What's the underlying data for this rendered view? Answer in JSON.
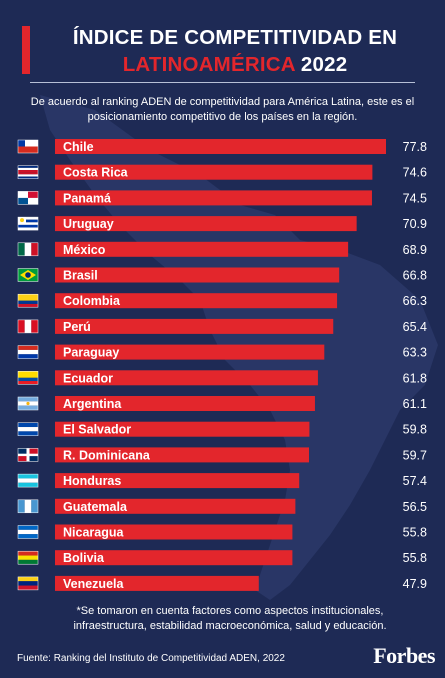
{
  "header": {
    "title_line1": "ÍNDICE DE COMPETITIVIDAD EN",
    "title_highlight": "LATINOAMÉRICA",
    "title_year": "2022",
    "subtitle": "De acuerdo al ranking ADEN de competitividad para América Latina, este es el posicionamiento competitivo de los países en la región."
  },
  "colors": {
    "background": "#1e2a55",
    "bar": "#e3262c",
    "accent": "#e3262c",
    "text": "#ffffff"
  },
  "chart_data": {
    "type": "bar",
    "orientation": "horizontal",
    "categories": [
      "Chile",
      "Costa Rica",
      "Panamá",
      "Uruguay",
      "México",
      "Brasil",
      "Colombia",
      "Perú",
      "Paraguay",
      "Ecuador",
      "Argentina",
      "El Salvador",
      "R. Dominicana",
      "Honduras",
      "Guatemala",
      "Nicaragua",
      "Bolivia",
      "Venezuela"
    ],
    "values": [
      77.8,
      74.6,
      74.5,
      70.9,
      68.9,
      66.8,
      66.3,
      65.4,
      63.3,
      61.8,
      61.1,
      59.8,
      59.7,
      57.4,
      56.5,
      55.8,
      55.8,
      47.9
    ],
    "value_labels": [
      "77.8",
      "74.6",
      "74.5",
      "70.9",
      "68.9",
      "66.8",
      "66.3",
      "65.4",
      "63.3",
      "61.8",
      "61.1",
      "59.8",
      "59.7",
      "57.4",
      "56.5",
      "55.8",
      "55.8",
      "47.9"
    ],
    "flag_icons": [
      "chile-flag-icon",
      "costa-rica-flag-icon",
      "panama-flag-icon",
      "uruguay-flag-icon",
      "mexico-flag-icon",
      "brazil-flag-icon",
      "colombia-flag-icon",
      "peru-flag-icon",
      "paraguay-flag-icon",
      "ecuador-flag-icon",
      "argentina-flag-icon",
      "el-salvador-flag-icon",
      "dominican-republic-flag-icon",
      "honduras-flag-icon",
      "guatemala-flag-icon",
      "nicaragua-flag-icon",
      "bolivia-flag-icon",
      "venezuela-flag-icon"
    ],
    "xlim": [
      0,
      77.8
    ],
    "grid": false,
    "legend": "none"
  },
  "footer": {
    "note": "*Se tomaron en cuenta factores como aspectos institucionales, infraestructura, estabilidad macroeconómica, salud y educación.",
    "source": "Fuente: Ranking del Instituto de Competitividad ADEN, 2022",
    "brand": "Forbes"
  }
}
